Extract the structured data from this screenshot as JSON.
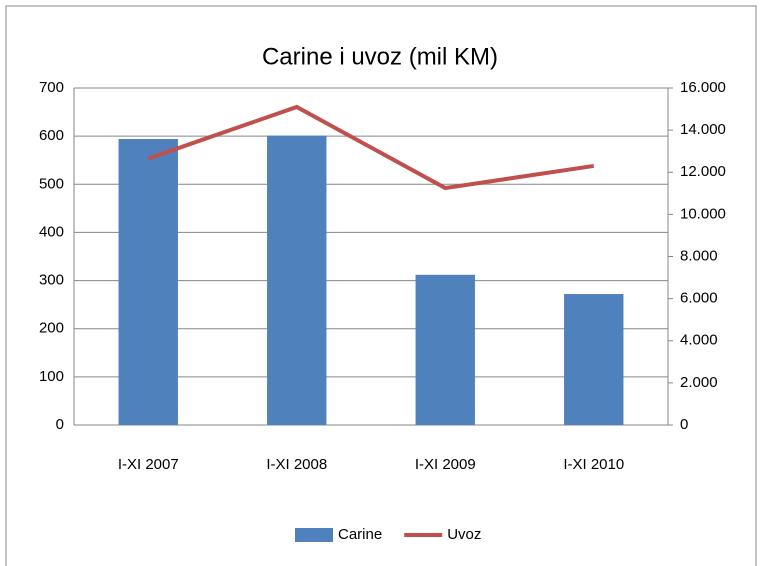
{
  "chart_data": {
    "type": "bar",
    "title": "Carine i uvoz (mil KM)",
    "categories": [
      "I-XI 2007",
      "I-XI 2008",
      "I-XI 2009",
      "I-XI 2010"
    ],
    "series": [
      {
        "name": "Carine",
        "type": "bar",
        "color": "#4f81bd",
        "values": [
          594,
          601,
          312,
          272
        ]
      },
      {
        "name": "Uvoz",
        "type": "line",
        "axis": "y2",
        "color": "#c0504d",
        "values": [
          12650,
          15100,
          11250,
          12300
        ]
      }
    ],
    "ylim": [
      0,
      700
    ],
    "yticks": [
      0,
      100,
      200,
      300,
      400,
      500,
      600,
      700
    ],
    "y2lim": [
      0,
      16000
    ],
    "y2ticks": [
      0,
      {
        "value": 2000,
        "label": "2.000"
      },
      {
        "value": 4000,
        "label": "4.000"
      },
      {
        "value": 6000,
        "label": "6.000"
      },
      {
        "value": 8000,
        "label": "8.000"
      },
      {
        "value": 10000,
        "label": "10.000"
      },
      {
        "value": 12000,
        "label": "12.000"
      },
      {
        "value": 14000,
        "label": "14.000"
      },
      {
        "value": 16000,
        "label": "16.000"
      }
    ],
    "grid": true,
    "legend": "bottom"
  }
}
